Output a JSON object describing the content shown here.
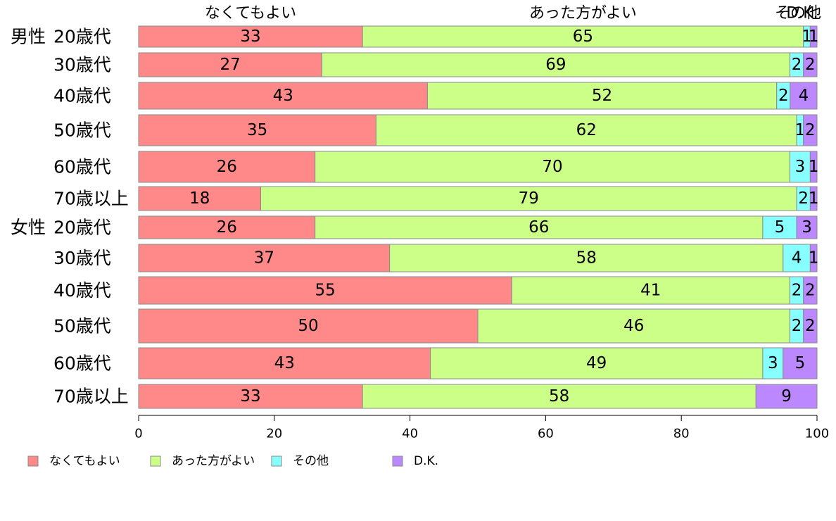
{
  "chart_data": {
    "type": "bar",
    "orientation": "horizontal",
    "stacked": true,
    "groups": [
      {
        "label": "男性",
        "categories": [
          "20歳代",
          "30歳代",
          "40歳代",
          "50歳代",
          "60歳代",
          "70歳以上"
        ]
      },
      {
        "label": "女性",
        "categories": [
          "20歳代",
          "30歳代",
          "40歳代",
          "50歳代",
          "60歳代",
          "70歳以上"
        ]
      }
    ],
    "categories": [
      "男性 20歳代",
      "30歳代",
      "40歳代",
      "50歳代",
      "60歳代",
      "70歳以上",
      "女性 20歳代",
      "30歳代",
      "40歳代",
      "50歳代",
      "60歳代",
      "70歳以上"
    ],
    "series": [
      {
        "name": "なくてもよい",
        "color": "#ff8888",
        "values": [
          33,
          27,
          43,
          35,
          26,
          18,
          26,
          37,
          55,
          50,
          43,
          33
        ]
      },
      {
        "name": "あった方がよい",
        "color": "#ccff88",
        "values": [
          65,
          69,
          52,
          62,
          70,
          79,
          66,
          58,
          41,
          46,
          49,
          58
        ]
      },
      {
        "name": "その他",
        "color": "#88ffff",
        "values": [
          1,
          2,
          2,
          1,
          3,
          2,
          5,
          4,
          2,
          2,
          3,
          0
        ]
      },
      {
        "name": "D.K.",
        "color": "#bb88ff",
        "values": [
          1,
          2,
          4,
          2,
          1,
          1,
          3,
          1,
          2,
          2,
          5,
          9
        ]
      }
    ],
    "top_labels": [
      "なくてもよい",
      "あった方がよい",
      "その他",
      "D.K."
    ],
    "xlim": [
      0,
      100
    ],
    "xticks": [
      0,
      20,
      40,
      60,
      80,
      100
    ],
    "grid": false,
    "legend": "bottom"
  }
}
